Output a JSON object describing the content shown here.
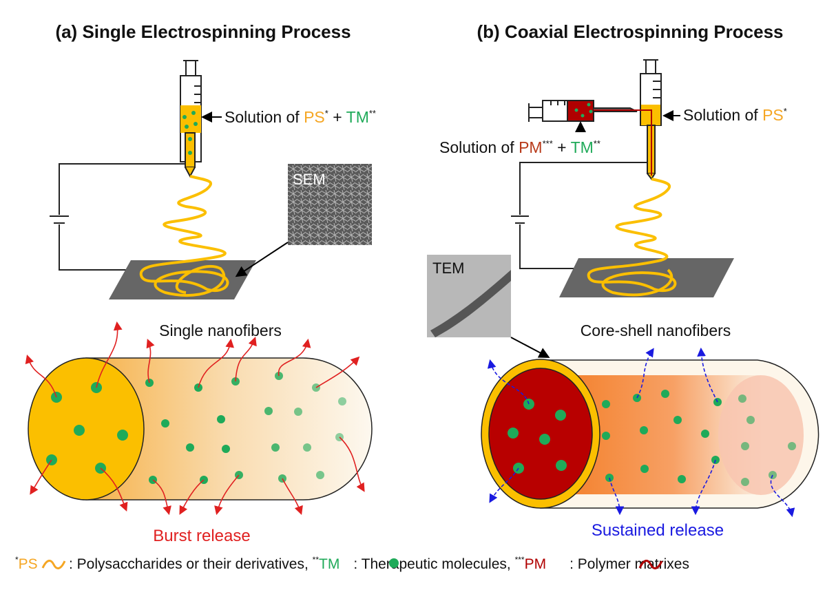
{
  "panel_a": {
    "title": "(a) Single Electrospinning Process",
    "solution_prefix": "Solution of ",
    "ps": "PS",
    "plus": " + ",
    "tm": "TM",
    "sem_label": "SEM",
    "fiber_label": "Single nanofibers",
    "release_label": "Burst release"
  },
  "panel_b": {
    "title": "(b) Coaxial Electrospinning Process",
    "shell_solution_prefix": "Solution of ",
    "ps": "PS",
    "core_solution_prefix": "Solution of ",
    "pm": "PM",
    "plus": " + ",
    "tm": "TM",
    "tem_label": "TEM",
    "fiber_label": "Core-shell nanofibers",
    "release_label": "Sustained release"
  },
  "footnote": {
    "ps_mark": "*",
    "ps": "PS",
    "ps_def": ": Polysaccharides or their derivatives, ",
    "tm_mark": "**",
    "tm": "TM",
    "tm_def": ": Therapeutic molecules, ",
    "pm_mark": "***",
    "pm": "PM",
    "pm_def": ": Polymer matrixes",
    "s1": "*",
    "s2": "**",
    "s3": "***"
  },
  "colors": {
    "ps": "#f5a623",
    "tm": "#1faa59",
    "pm": "#b00000",
    "burst": "#e02020",
    "sustained": "#1a1ae0"
  }
}
